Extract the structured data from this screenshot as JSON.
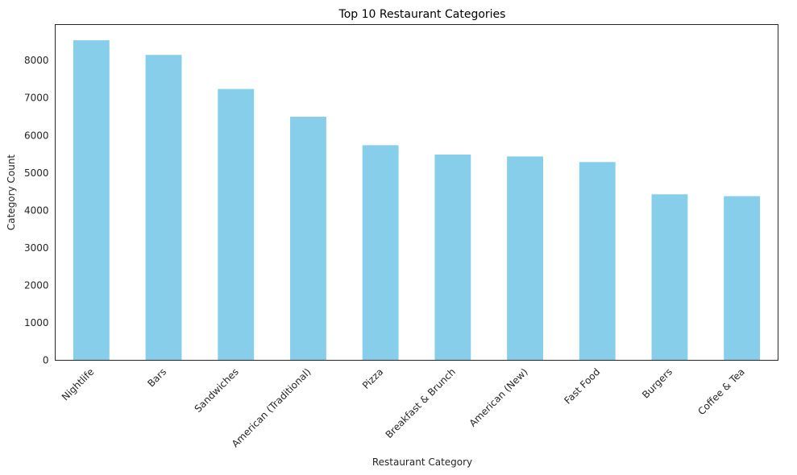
{
  "chart_data": {
    "type": "bar",
    "title": "Top 10 Restaurant Categories",
    "xlabel": "Restaurant Category",
    "ylabel": "Category Count",
    "categories": [
      "Nightlife",
      "Bars",
      "Sandwiches",
      "American (Traditional)",
      "Pizza",
      "Breakfast & Brunch",
      "American (New)",
      "Fast Food",
      "Burgers",
      "Coffee & Tea"
    ],
    "values": [
      8540,
      8150,
      7240,
      6500,
      5740,
      5490,
      5440,
      5290,
      4430,
      4380
    ],
    "ylim": [
      0,
      8960
    ],
    "yticks": [
      0,
      1000,
      2000,
      3000,
      4000,
      5000,
      6000,
      7000,
      8000
    ],
    "ytick_labels": [
      "0",
      "1000",
      "2000",
      "3000",
      "4000",
      "5000",
      "6000",
      "7000",
      "8000"
    ],
    "grid": false,
    "bar_color": "#87CEEB",
    "axis_color": "#262626"
  }
}
